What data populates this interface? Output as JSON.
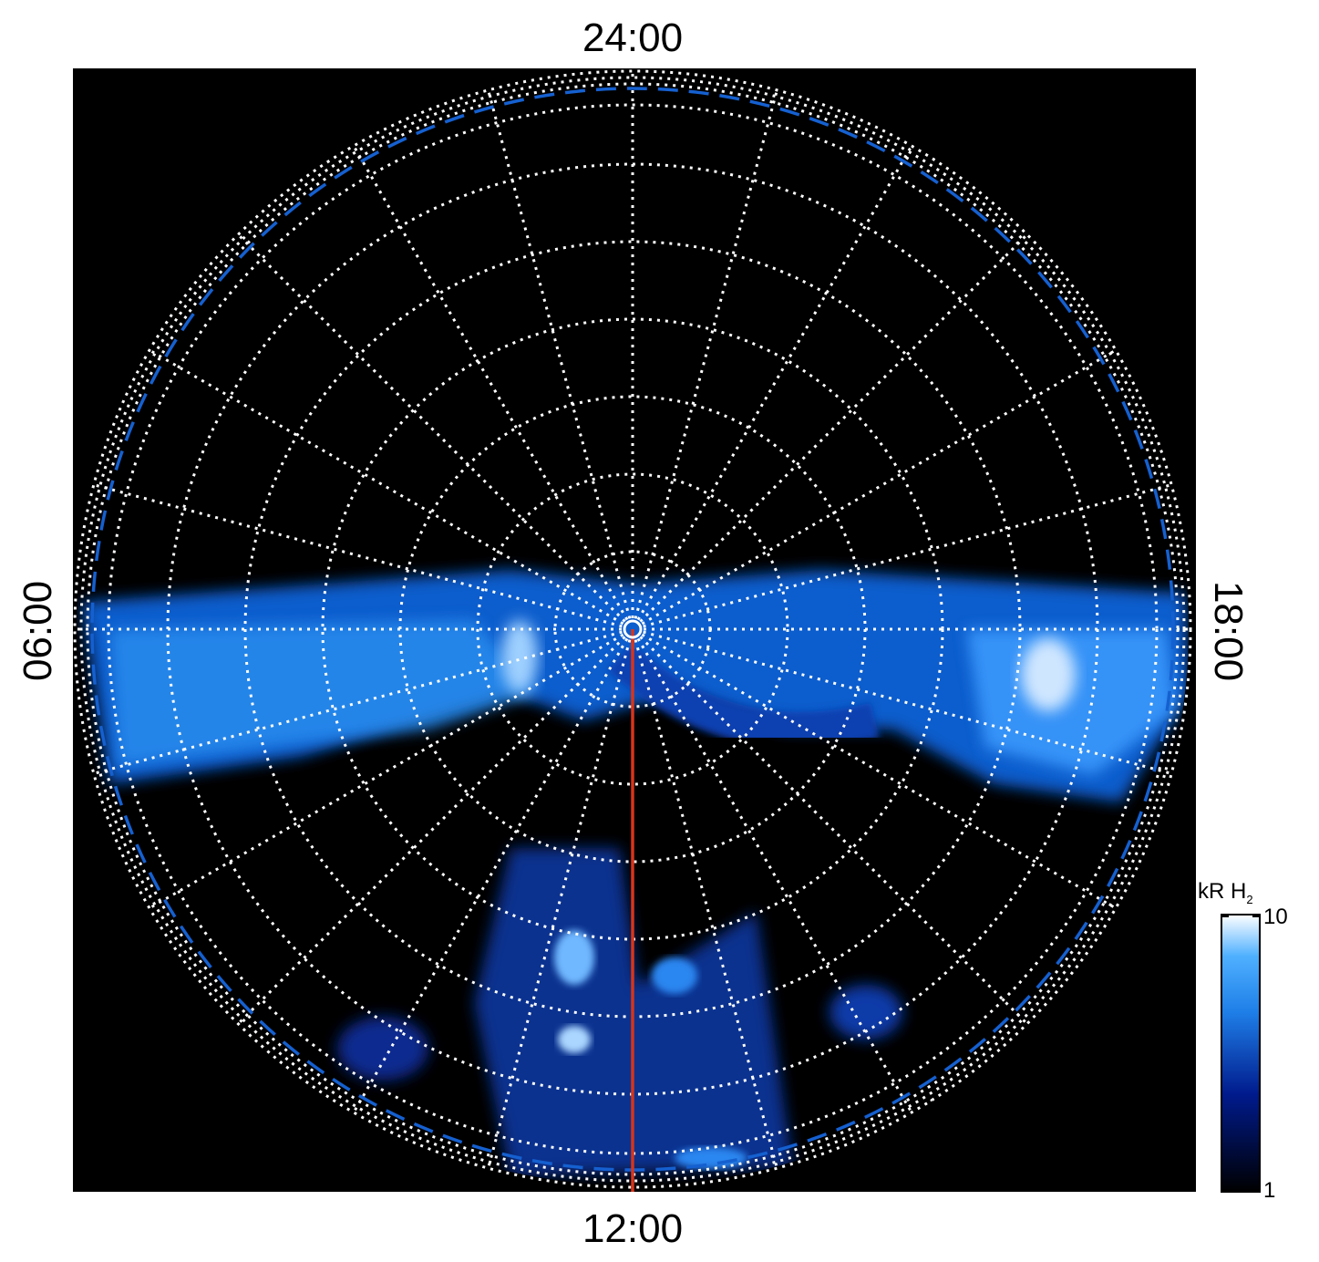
{
  "labels": {
    "top": "24:00",
    "bottom": "12:00",
    "left": "06:00",
    "right": "18:00"
  },
  "colorbar": {
    "title": "kR H",
    "title_subscript": "2",
    "lim": [
      1,
      10
    ],
    "log": true,
    "ticks": [
      1,
      10
    ]
  }
}
